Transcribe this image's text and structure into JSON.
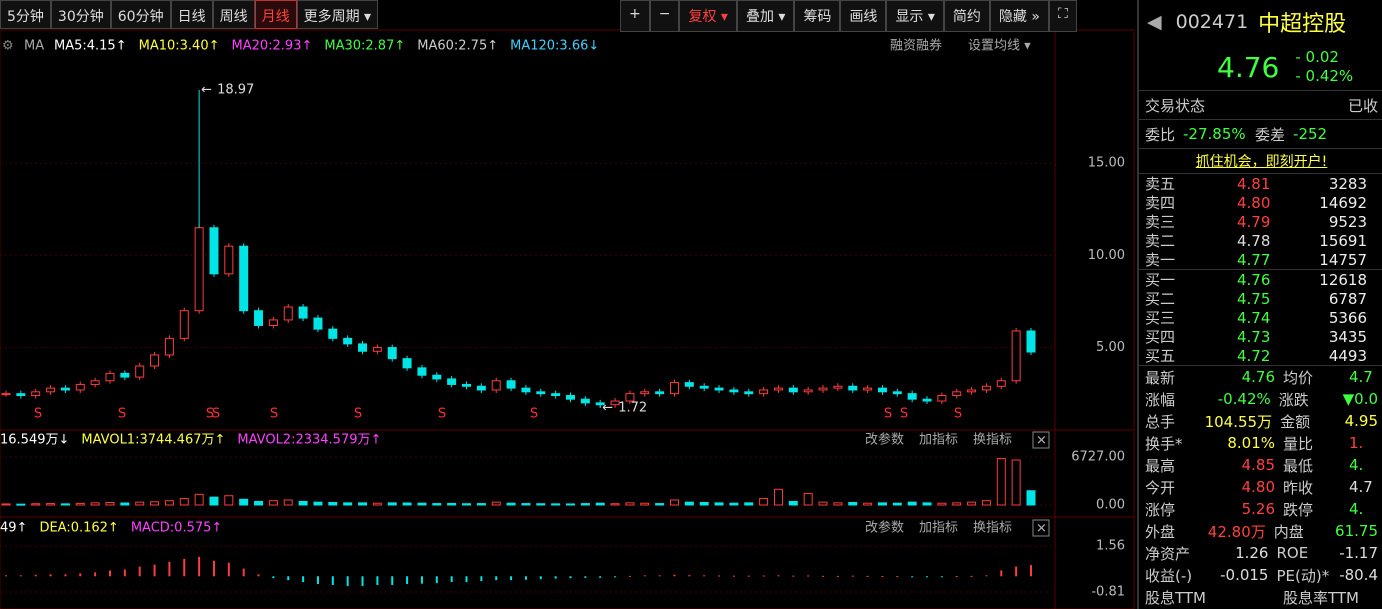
{
  "toolbar": {
    "periods": [
      "5分钟",
      "30分钟",
      "60分钟",
      "日线",
      "周线",
      "月线",
      "更多周期 ▾"
    ],
    "tools": [
      "+",
      "−",
      "复权 ▾",
      "叠加 ▾",
      "筹码",
      "画线",
      "显示 ▾",
      "简约",
      "隐藏 »",
      "⛶"
    ]
  },
  "ma_legend": {
    "label": "MA",
    "items": [
      {
        "text": "MA5:4.15↑",
        "color": "#ffffff"
      },
      {
        "text": "MA10:3.40↑",
        "color": "#ffff40"
      },
      {
        "text": "MA20:2.93↑",
        "color": "#ff40ff"
      },
      {
        "text": "MA30:2.87↑",
        "color": "#40ff40"
      },
      {
        "text": "MA60:2.75↑",
        "color": "#cccccc"
      },
      {
        "text": "MA120:3.66↓",
        "color": "#40d0ff"
      }
    ],
    "links": [
      "融资融券",
      "设置均线 ▾"
    ]
  },
  "price_chart": {
    "type": "candlestick",
    "up_color": "#ff3c3c",
    "down_color": "#00e5e5",
    "closes": [
      2.5,
      2.4,
      2.6,
      2.8,
      2.7,
      3.0,
      3.2,
      3.6,
      3.4,
      4.0,
      4.6,
      5.5,
      7.0,
      11.5,
      9.0,
      10.5,
      7.0,
      6.2,
      6.5,
      7.2,
      6.6,
      6.0,
      5.5,
      5.2,
      4.8,
      5.0,
      4.4,
      3.9,
      3.5,
      3.3,
      3.0,
      2.9,
      2.7,
      3.2,
      2.8,
      2.6,
      2.5,
      2.4,
      2.2,
      2.0,
      1.9,
      2.1,
      2.5,
      2.6,
      2.5,
      3.1,
      2.9,
      2.8,
      2.7,
      2.6,
      2.5,
      2.7,
      2.8,
      2.6,
      2.7,
      2.8,
      2.9,
      2.7,
      2.8,
      2.6,
      2.5,
      2.2,
      2.1,
      2.4,
      2.6,
      2.7,
      2.9,
      3.2,
      5.9,
      4.76
    ],
    "ylim": [
      0.8,
      20.6
    ],
    "yticks": [
      {
        "value": 15,
        "label": "15.00"
      },
      {
        "value": 10,
        "label": "10.00"
      },
      {
        "value": 5,
        "label": "5.00"
      }
    ],
    "max_label": "18.97",
    "max_value": 18.97,
    "min_label": "1.72",
    "min_value": 1.72
  },
  "volume": {
    "legend": [
      {
        "text": "16.549万↓",
        "color": "#ffffff"
      },
      {
        "text": "MAVOL1:3744.467万↑",
        "color": "#ffff40"
      },
      {
        "text": "MAVOL2:2334.579万↑",
        "color": "#ff40ff"
      }
    ],
    "tools": [
      "改参数",
      "加指标",
      "换指标"
    ],
    "values": [
      150,
      120,
      180,
      200,
      160,
      220,
      300,
      350,
      280,
      400,
      450,
      600,
      900,
      1500,
      1100,
      1300,
      800,
      500,
      600,
      700,
      500,
      400,
      350,
      300,
      300,
      250,
      300,
      280,
      250,
      200,
      220,
      180,
      200,
      400,
      250,
      200,
      180,
      160,
      150,
      200,
      250,
      180,
      300,
      250,
      200,
      700,
      400,
      350,
      300,
      250,
      300,
      900,
      2200,
      500,
      1600,
      400,
      300,
      350,
      250,
      300,
      250,
      400,
      300,
      250,
      300,
      400,
      600,
      6500,
      6300,
      2000
    ],
    "ylim": [
      0,
      6727
    ],
    "yticks": [
      {
        "value": 6727,
        "label": "6727.00"
      },
      {
        "value": 0,
        "label": "0.00"
      }
    ]
  },
  "macd": {
    "legend": [
      {
        "text": "49↑",
        "color": "#ffffff"
      },
      {
        "text": "DEA:0.162↑",
        "color": "#ffff40"
      },
      {
        "text": "MACD:0.575↑",
        "color": "#ff40ff"
      }
    ],
    "tools": [
      "改参数",
      "加指标",
      "换指标"
    ],
    "values": [
      0.05,
      0.05,
      0.08,
      0.1,
      0.1,
      0.15,
      0.2,
      0.3,
      0.35,
      0.5,
      0.6,
      0.75,
      0.9,
      1.0,
      0.8,
      0.7,
      0.4,
      0.1,
      -0.1,
      -0.2,
      -0.3,
      -0.4,
      -0.45,
      -0.5,
      -0.5,
      -0.45,
      -0.45,
      -0.4,
      -0.38,
      -0.35,
      -0.3,
      -0.3,
      -0.25,
      -0.2,
      -0.2,
      -0.18,
      -0.15,
      -0.12,
      -0.1,
      -0.08,
      -0.08,
      -0.05,
      0.02,
      0.05,
      0.05,
      0.08,
      0.06,
      0.05,
      0.04,
      0.03,
      0.03,
      0.04,
      0.05,
      0.03,
      0.04,
      0.02,
      0.02,
      0.03,
      0.02,
      0.01,
      0.01,
      -0.02,
      -0.03,
      -0.02,
      0.01,
      0.02,
      0.05,
      0.3,
      0.5,
      0.575
    ],
    "ylim": [
      -1.38,
      2.13
    ],
    "yticks": [
      1.56,
      -0.81
    ]
  },
  "quote": {
    "code": "002471",
    "name": "中超控股",
    "price": "4.76",
    "change": "- 0.02",
    "change_pct": "- 0.42%",
    "status": [
      "交易状态",
      "已收"
    ],
    "wb": [
      "委比",
      "-27.85%",
      "委差",
      "-252"
    ],
    "ad": "抓住机会，即刻开户!",
    "asks": [
      [
        "卖五",
        "4.81",
        "3283",
        "#ff4040"
      ],
      [
        "卖四",
        "4.80",
        "14692",
        "#ff4040"
      ],
      [
        "卖三",
        "4.79",
        "9523",
        "#ff4040"
      ],
      [
        "卖二",
        "4.78",
        "15691",
        "#dddddd"
      ],
      [
        "卖一",
        "4.77",
        "14757",
        "#40ff40"
      ]
    ],
    "bids": [
      [
        "买一",
        "4.76",
        "12618",
        "#40ff40"
      ],
      [
        "买二",
        "4.75",
        "6787",
        "#40ff40"
      ],
      [
        "买三",
        "4.74",
        "5366",
        "#40ff40"
      ],
      [
        "买四",
        "4.73",
        "3435",
        "#40ff40"
      ],
      [
        "买五",
        "4.72",
        "4493",
        "#40ff40"
      ]
    ],
    "stats": [
      [
        "最新",
        "4.76",
        "#40ff40",
        "均价",
        "4.7",
        "#40ff40"
      ],
      [
        "涨幅",
        "-0.42%",
        "#40ff40",
        "涨跌",
        "▼0.0",
        "#40ff40"
      ],
      [
        "总手",
        "104.55万",
        "#ffff40",
        "金额",
        "4.95",
        "#ffff40"
      ],
      [
        "换手*",
        "8.01%",
        "#ffff40",
        "量比",
        "1.",
        "#ff4040"
      ],
      [
        "最高",
        "4.85",
        "#ff4040",
        "最低",
        "4.",
        "#40ff40"
      ],
      [
        "今开",
        "4.80",
        "#ff4040",
        "昨收",
        "4.7",
        "#dddddd"
      ],
      [
        "涨停",
        "5.26",
        "#ff4040",
        "跌停",
        "4.",
        "#40ff40"
      ],
      [
        "外盘",
        "42.80万",
        "#ff4040",
        "内盘",
        "61.75",
        "#40ff40"
      ],
      [
        "净资产",
        "1.26",
        "#dddddd",
        "ROE",
        "-1.17",
        "#dddddd"
      ],
      [
        "收益(-)",
        "-0.015",
        "#dddddd",
        "PE(动)*",
        "-80.4",
        "#dddddd"
      ],
      [
        "股息TTM",
        "",
        "#dddddd",
        "股息率TTM",
        "",
        "#dddddd"
      ]
    ]
  }
}
